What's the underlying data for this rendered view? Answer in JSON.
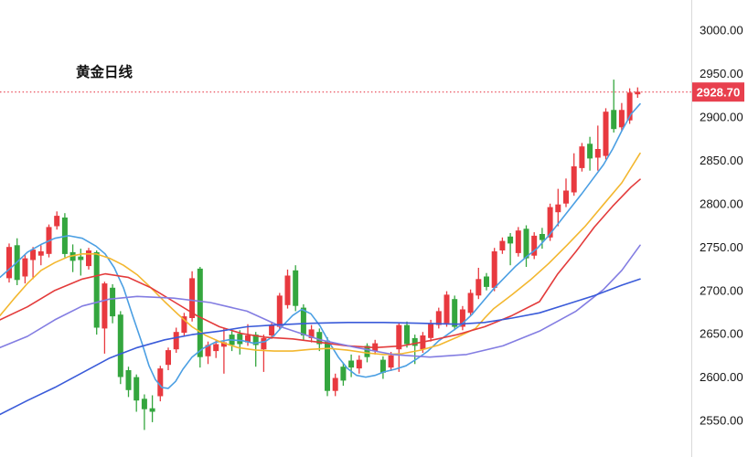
{
  "chart": {
    "title": "黄金日线",
    "last_price_label": "2928.70"
  },
  "chart_data": {
    "type": "candlestick",
    "title": "黄金日线",
    "last_price": 2928.7,
    "colors": {
      "up": "#e8393f",
      "down": "#34a63e",
      "price_line": "#e8404e",
      "price_label_bg": "#e8404e",
      "axis_line": "#d9d9d9",
      "tick_text": "#161616"
    },
    "y_axis": {
      "min": 2530,
      "max": 3010,
      "ticks": [
        {
          "price": 3000,
          "label": "3000.00"
        },
        {
          "price": 2950,
          "label": "2950.00"
        },
        {
          "price": 2900,
          "label": "2900.00"
        },
        {
          "price": 2850,
          "label": "2850.00"
        },
        {
          "price": 2800,
          "label": "2800.00"
        },
        {
          "price": 2750,
          "label": "2750.00"
        },
        {
          "price": 2700,
          "label": "2700.00"
        },
        {
          "price": 2650,
          "label": "2650.00"
        },
        {
          "price": 2600,
          "label": "2600.00"
        },
        {
          "price": 2550,
          "label": "2550.00"
        }
      ]
    },
    "candles_format": [
      "open",
      "high",
      "low",
      "close"
    ],
    "candles": [
      [
        2714,
        2754,
        2709,
        2750
      ],
      [
        2752,
        2760,
        2706,
        2712
      ],
      [
        2716,
        2741,
        2708,
        2737
      ],
      [
        2735,
        2750,
        2713,
        2747
      ],
      [
        2740,
        2752,
        2729,
        2745
      ],
      [
        2742,
        2776,
        2738,
        2773
      ],
      [
        2774,
        2791,
        2770,
        2786
      ],
      [
        2784,
        2789,
        2738,
        2742
      ],
      [
        2744,
        2753,
        2721,
        2734
      ],
      [
        2739,
        2748,
        2717,
        2735
      ],
      [
        2728,
        2749,
        2724,
        2746
      ],
      [
        2744,
        2746,
        2649,
        2657
      ],
      [
        2656,
        2710,
        2627,
        2708
      ],
      [
        2703,
        2707,
        2662,
        2670
      ],
      [
        2672,
        2676,
        2592,
        2600
      ],
      [
        2608,
        2612,
        2577,
        2585
      ],
      [
        2600,
        2603,
        2560,
        2573
      ],
      [
        2575,
        2580,
        2539,
        2563
      ],
      [
        2564,
        2579,
        2548,
        2560
      ],
      [
        2578,
        2613,
        2572,
        2610
      ],
      [
        2614,
        2634,
        2608,
        2631
      ],
      [
        2632,
        2657,
        2628,
        2652
      ],
      [
        2651,
        2674,
        2647,
        2670
      ],
      [
        2668,
        2722,
        2664,
        2714
      ],
      [
        2725,
        2727,
        2611,
        2623
      ],
      [
        2624,
        2641,
        2615,
        2637
      ],
      [
        2630,
        2642,
        2622,
        2638
      ],
      [
        2635,
        2656,
        2604,
        2640
      ],
      [
        2649,
        2653,
        2630,
        2637
      ],
      [
        2650,
        2654,
        2626,
        2638
      ],
      [
        2640,
        2661,
        2636,
        2648
      ],
      [
        2649,
        2652,
        2612,
        2637
      ],
      [
        2632,
        2649,
        2606,
        2645
      ],
      [
        2648,
        2663,
        2644,
        2660
      ],
      [
        2658,
        2697,
        2654,
        2694
      ],
      [
        2683,
        2724,
        2679,
        2717
      ],
      [
        2723,
        2729,
        2676,
        2682
      ],
      [
        2680,
        2684,
        2643,
        2648
      ],
      [
        2645,
        2660,
        2640,
        2655
      ],
      [
        2652,
        2656,
        2630,
        2638
      ],
      [
        2642,
        2646,
        2578,
        2584
      ],
      [
        2584,
        2604,
        2578,
        2599
      ],
      [
        2612,
        2616,
        2590,
        2596
      ],
      [
        2619,
        2626,
        2600,
        2611
      ],
      [
        2610,
        2625,
        2604,
        2620
      ],
      [
        2636,
        2639,
        2617,
        2623
      ],
      [
        2630,
        2643,
        2626,
        2639
      ],
      [
        2620,
        2624,
        2598,
        2605
      ],
      [
        2611,
        2629,
        2607,
        2625
      ],
      [
        2632,
        2663,
        2606,
        2660
      ],
      [
        2660,
        2664,
        2634,
        2638
      ],
      [
        2645,
        2649,
        2615,
        2636
      ],
      [
        2632,
        2652,
        2628,
        2648
      ],
      [
        2645,
        2666,
        2641,
        2662
      ],
      [
        2660,
        2680,
        2656,
        2676
      ],
      [
        2662,
        2699,
        2658,
        2695
      ],
      [
        2690,
        2694,
        2654,
        2658
      ],
      [
        2658,
        2682,
        2654,
        2678
      ],
      [
        2674,
        2701,
        2670,
        2697
      ],
      [
        2694,
        2726,
        2690,
        2713
      ],
      [
        2716,
        2720,
        2700,
        2704
      ],
      [
        2703,
        2749,
        2699,
        2745
      ],
      [
        2746,
        2761,
        2742,
        2757
      ],
      [
        2762,
        2766,
        2729,
        2754
      ],
      [
        2743,
        2773,
        2739,
        2769
      ],
      [
        2771,
        2775,
        2727,
        2737
      ],
      [
        2740,
        2767,
        2736,
        2763
      ],
      [
        2765,
        2772,
        2748,
        2758
      ],
      [
        2761,
        2800,
        2757,
        2796
      ],
      [
        2790,
        2817,
        2774,
        2799
      ],
      [
        2800,
        2829,
        2796,
        2815
      ],
      [
        2813,
        2858,
        2809,
        2843
      ],
      [
        2841,
        2870,
        2837,
        2866
      ],
      [
        2869,
        2877,
        2838,
        2852
      ],
      [
        2853,
        2890,
        2838,
        2863
      ],
      [
        2855,
        2910,
        2851,
        2906
      ],
      [
        2908,
        2943,
        2882,
        2886
      ],
      [
        2888,
        2916,
        2884,
        2908
      ],
      [
        2896,
        2933,
        2892,
        2928
      ],
      [
        2926,
        2934,
        2922,
        2929
      ]
    ],
    "moving_averages": [
      {
        "name": "blue-fast",
        "color": "#4b9fe3",
        "points": [
          [
            0,
            2715
          ],
          [
            15,
            2729
          ],
          [
            30,
            2744
          ],
          [
            45,
            2753
          ],
          [
            60,
            2760
          ],
          [
            75,
            2763
          ],
          [
            90,
            2760
          ],
          [
            105,
            2751
          ],
          [
            115,
            2742
          ],
          [
            125,
            2726
          ],
          [
            135,
            2703
          ],
          [
            145,
            2671
          ],
          [
            155,
            2640
          ],
          [
            163,
            2613
          ],
          [
            170,
            2597
          ],
          [
            177,
            2588
          ],
          [
            184,
            2587
          ],
          [
            192,
            2595
          ],
          [
            200,
            2609
          ],
          [
            210,
            2623
          ],
          [
            222,
            2633
          ],
          [
            235,
            2640
          ],
          [
            250,
            2643
          ],
          [
            265,
            2642
          ],
          [
            278,
            2639
          ],
          [
            290,
            2641
          ],
          [
            300,
            2648
          ],
          [
            310,
            2660
          ],
          [
            320,
            2671
          ],
          [
            330,
            2678
          ],
          [
            340,
            2673
          ],
          [
            350,
            2659
          ],
          [
            360,
            2640
          ],
          [
            370,
            2623
          ],
          [
            380,
            2610
          ],
          [
            390,
            2602
          ],
          [
            400,
            2600
          ],
          [
            410,
            2602
          ],
          [
            420,
            2606
          ],
          [
            432,
            2609
          ],
          [
            444,
            2613
          ],
          [
            456,
            2621
          ],
          [
            468,
            2630
          ],
          [
            480,
            2642
          ],
          [
            492,
            2651
          ],
          [
            504,
            2660
          ],
          [
            516,
            2672
          ],
          [
            528,
            2687
          ],
          [
            540,
            2702
          ],
          [
            552,
            2715
          ],
          [
            564,
            2728
          ],
          [
            576,
            2739
          ],
          [
            588,
            2749
          ],
          [
            600,
            2763
          ],
          [
            612,
            2779
          ],
          [
            624,
            2795
          ],
          [
            636,
            2811
          ],
          [
            648,
            2828
          ],
          [
            660,
            2845
          ],
          [
            670,
            2863
          ],
          [
            680,
            2884
          ],
          [
            690,
            2903
          ],
          [
            700,
            2915
          ]
        ]
      },
      {
        "name": "yellow",
        "color": "#f3b72f",
        "points": [
          [
            0,
            2671
          ],
          [
            15,
            2690
          ],
          [
            30,
            2708
          ],
          [
            45,
            2723
          ],
          [
            60,
            2732
          ],
          [
            75,
            2739
          ],
          [
            90,
            2742
          ],
          [
            105,
            2742
          ],
          [
            120,
            2737
          ],
          [
            135,
            2729
          ],
          [
            150,
            2718
          ],
          [
            165,
            2703
          ],
          [
            180,
            2687
          ],
          [
            195,
            2672
          ],
          [
            210,
            2658
          ],
          [
            225,
            2648
          ],
          [
            240,
            2641
          ],
          [
            260,
            2634
          ],
          [
            280,
            2631
          ],
          [
            300,
            2630
          ],
          [
            320,
            2630
          ],
          [
            340,
            2632
          ],
          [
            360,
            2633
          ],
          [
            380,
            2631
          ],
          [
            400,
            2628
          ],
          [
            420,
            2626
          ],
          [
            440,
            2627
          ],
          [
            460,
            2631
          ],
          [
            480,
            2637
          ],
          [
            500,
            2646
          ],
          [
            520,
            2656
          ],
          [
            530,
            2668
          ],
          [
            540,
            2679
          ],
          [
            560,
            2695
          ],
          [
            580,
            2712
          ],
          [
            600,
            2731
          ],
          [
            620,
            2752
          ],
          [
            640,
            2774
          ],
          [
            660,
            2799
          ],
          [
            680,
            2824
          ],
          [
            700,
            2858
          ]
        ]
      },
      {
        "name": "red",
        "color": "#e33b3b",
        "points": [
          [
            0,
            2666
          ],
          [
            30,
            2681
          ],
          [
            60,
            2700
          ],
          [
            90,
            2713
          ],
          [
            115,
            2719
          ],
          [
            140,
            2715
          ],
          [
            165,
            2703
          ],
          [
            190,
            2687
          ],
          [
            215,
            2671
          ],
          [
            240,
            2658
          ],
          [
            265,
            2650
          ],
          [
            290,
            2646
          ],
          [
            320,
            2644
          ],
          [
            350,
            2640
          ],
          [
            380,
            2636
          ],
          [
            410,
            2634
          ],
          [
            440,
            2636
          ],
          [
            470,
            2642
          ],
          [
            500,
            2649
          ],
          [
            530,
            2658
          ],
          [
            560,
            2671
          ],
          [
            590,
            2687
          ],
          [
            610,
            2719
          ],
          [
            630,
            2745
          ],
          [
            650,
            2773
          ],
          [
            670,
            2797
          ],
          [
            690,
            2819
          ],
          [
            700,
            2828
          ]
        ]
      },
      {
        "name": "purple",
        "color": "#837de2",
        "points": [
          [
            0,
            2634
          ],
          [
            30,
            2647
          ],
          [
            60,
            2666
          ],
          [
            90,
            2682
          ],
          [
            120,
            2690
          ],
          [
            150,
            2693
          ],
          [
            190,
            2691
          ],
          [
            230,
            2686
          ],
          [
            270,
            2676
          ],
          [
            310,
            2657
          ],
          [
            350,
            2643
          ],
          [
            390,
            2634
          ],
          [
            430,
            2626
          ],
          [
            470,
            2623
          ],
          [
            510,
            2626
          ],
          [
            550,
            2636
          ],
          [
            590,
            2653
          ],
          [
            630,
            2676
          ],
          [
            660,
            2701
          ],
          [
            680,
            2723
          ],
          [
            700,
            2752
          ]
        ]
      },
      {
        "name": "dark-blue",
        "color": "#3a5bd9",
        "points": [
          [
            0,
            2557
          ],
          [
            30,
            2573
          ],
          [
            60,
            2588
          ],
          [
            90,
            2605
          ],
          [
            120,
            2622
          ],
          [
            150,
            2634
          ],
          [
            180,
            2643
          ],
          [
            210,
            2649
          ],
          [
            240,
            2653
          ],
          [
            270,
            2658
          ],
          [
            300,
            2660
          ],
          [
            340,
            2662
          ],
          [
            380,
            2663
          ],
          [
            420,
            2663
          ],
          [
            460,
            2662
          ],
          [
            500,
            2661
          ],
          [
            530,
            2663
          ],
          [
            560,
            2668
          ],
          [
            590,
            2674
          ],
          [
            620,
            2684
          ],
          [
            650,
            2694
          ],
          [
            680,
            2706
          ],
          [
            700,
            2713
          ]
        ]
      }
    ]
  }
}
